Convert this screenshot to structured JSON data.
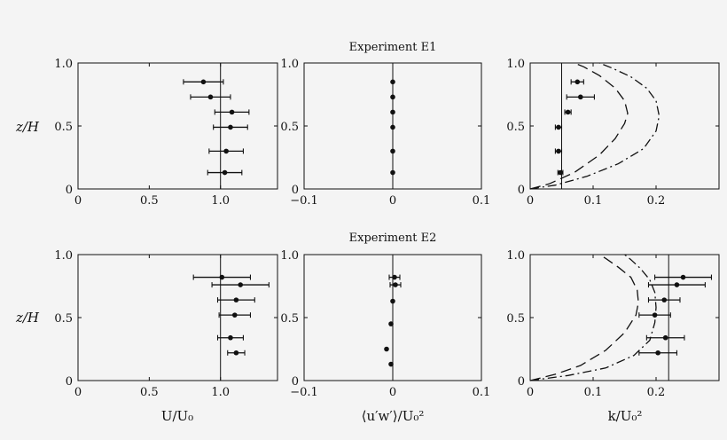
{
  "figure": {
    "row_titles": [
      "Experiment E1",
      "Experiment E2"
    ],
    "ylabel": "z/H",
    "xlabels": [
      "U/U₀",
      "⟨u′w′⟩/U₀²",
      "k/U₀²"
    ]
  },
  "chart_data": [
    {
      "type": "scatter",
      "id": "E1-U",
      "title": "Experiment E1",
      "xlim": [
        0,
        1.4
      ],
      "ylim": [
        0,
        1.0
      ],
      "xticks": [
        "0",
        "0.5",
        "1.0"
      ],
      "xtick_values": [
        0,
        0.5,
        1.0
      ],
      "yticks": [
        "0",
        "0.5",
        "1.0"
      ],
      "ytick_values": [
        0,
        0.5,
        1.0
      ],
      "reference_line_x": 1.0,
      "points": [
        {
          "x": 0.88,
          "y": 0.85,
          "xerr": 0.14
        },
        {
          "x": 0.93,
          "y": 0.73,
          "xerr": 0.14
        },
        {
          "x": 1.08,
          "y": 0.61,
          "xerr": 0.12
        },
        {
          "x": 1.07,
          "y": 0.49,
          "xerr": 0.12
        },
        {
          "x": 1.04,
          "y": 0.3,
          "xerr": 0.12
        },
        {
          "x": 1.03,
          "y": 0.13,
          "xerr": 0.12
        }
      ],
      "curves": []
    },
    {
      "type": "scatter",
      "id": "E1-uw",
      "title": "",
      "xlim": [
        -0.1,
        0.1
      ],
      "ylim": [
        0,
        1.0
      ],
      "xticks": [
        "−0.1",
        "0",
        "0.1"
      ],
      "xtick_values": [
        -0.1,
        0,
        0.1
      ],
      "yticks": [
        "0",
        "0.5",
        "1.0"
      ],
      "ytick_values": [
        0,
        0.5,
        1.0
      ],
      "reference_line_x": 0,
      "points": [
        {
          "x": 0,
          "y": 0.85,
          "xerr": 0
        },
        {
          "x": 0,
          "y": 0.73,
          "xerr": 0
        },
        {
          "x": 0,
          "y": 0.61,
          "xerr": 0
        },
        {
          "x": 0,
          "y": 0.49,
          "xerr": 0
        },
        {
          "x": 0,
          "y": 0.3,
          "xerr": 0
        },
        {
          "x": 0,
          "y": 0.13,
          "xerr": 0
        }
      ],
      "curves": []
    },
    {
      "type": "scatter",
      "id": "E1-k",
      "title": "",
      "xlim": [
        0,
        0.3
      ],
      "ylim": [
        0,
        1.0
      ],
      "xticks": [
        "0",
        "0.1",
        "0.2"
      ],
      "xtick_values": [
        0,
        0.1,
        0.2
      ],
      "yticks": [
        "0",
        "0.5",
        "1.0"
      ],
      "ytick_values": [
        0,
        0.5,
        1.0
      ],
      "reference_line_x": 0.05,
      "points": [
        {
          "x": 0.075,
          "y": 0.85,
          "xerr": 0.01
        },
        {
          "x": 0.08,
          "y": 0.73,
          "xerr": 0.022
        },
        {
          "x": 0.06,
          "y": 0.61,
          "xerr": 0.005
        },
        {
          "x": 0.045,
          "y": 0.49,
          "xerr": 0.005
        },
        {
          "x": 0.045,
          "y": 0.3,
          "xerr": 0.005
        },
        {
          "x": 0.048,
          "y": 0.13,
          "xerr": 0.004
        }
      ],
      "curves": [
        {
          "dash": "12,6",
          "x": [
            0.0,
            0.03,
            0.07,
            0.11,
            0.135,
            0.15,
            0.155,
            0.15,
            0.135,
            0.11,
            0.085,
            0.07
          ],
          "y": [
            0.0,
            0.04,
            0.13,
            0.27,
            0.4,
            0.52,
            0.6,
            0.7,
            0.8,
            0.9,
            0.97,
            1.0
          ]
        },
        {
          "dash": "10,4,2,4",
          "x": [
            0.0,
            0.04,
            0.09,
            0.14,
            0.18,
            0.2,
            0.205,
            0.2,
            0.185,
            0.16,
            0.13,
            0.11
          ],
          "y": [
            0.0,
            0.03,
            0.1,
            0.2,
            0.32,
            0.46,
            0.58,
            0.7,
            0.8,
            0.89,
            0.96,
            1.0
          ]
        }
      ]
    },
    {
      "type": "scatter",
      "id": "E2-U",
      "title": "Experiment E2",
      "xlim": [
        0,
        1.4
      ],
      "ylim": [
        0,
        1.0
      ],
      "xticks": [
        "0",
        "0.5",
        "1.0"
      ],
      "xtick_values": [
        0,
        0.5,
        1.0
      ],
      "yticks": [
        "0",
        "0.5",
        "1.0"
      ],
      "ytick_values": [
        0,
        0.5,
        1.0
      ],
      "reference_line_x": 1.0,
      "points": [
        {
          "x": 1.01,
          "y": 0.82,
          "xerr": 0.2
        },
        {
          "x": 1.14,
          "y": 0.76,
          "xerr": 0.2
        },
        {
          "x": 1.11,
          "y": 0.64,
          "xerr": 0.13
        },
        {
          "x": 1.1,
          "y": 0.52,
          "xerr": 0.11
        },
        {
          "x": 1.07,
          "y": 0.34,
          "xerr": 0.09
        },
        {
          "x": 1.11,
          "y": 0.22,
          "xerr": 0.06
        }
      ],
      "curves": []
    },
    {
      "type": "scatter",
      "id": "E2-uw",
      "title": "",
      "xlim": [
        -0.1,
        0.1
      ],
      "ylim": [
        0,
        1.0
      ],
      "xticks": [
        "−0.1",
        "0",
        "0.1"
      ],
      "xtick_values": [
        -0.1,
        0,
        0.1
      ],
      "yticks": [
        "0",
        "0.5",
        "1.0"
      ],
      "ytick_values": [
        0,
        0.5,
        1.0
      ],
      "reference_line_x": 0,
      "points": [
        {
          "x": 0.002,
          "y": 0.82,
          "xerr": 0.006
        },
        {
          "x": 0.003,
          "y": 0.76,
          "xerr": 0.006
        },
        {
          "x": 0.0,
          "y": 0.63,
          "xerr": 0
        },
        {
          "x": -0.002,
          "y": 0.45,
          "xerr": 0
        },
        {
          "x": -0.007,
          "y": 0.25,
          "xerr": 0
        },
        {
          "x": -0.002,
          "y": 0.13,
          "xerr": 0
        }
      ],
      "curves": []
    },
    {
      "type": "scatter",
      "id": "E2-k",
      "title": "",
      "xlim": [
        0,
        0.3
      ],
      "ylim": [
        0,
        1.0
      ],
      "xticks": [
        "0",
        "0.1",
        "0.2"
      ],
      "xtick_values": [
        0,
        0.1,
        0.2
      ],
      "yticks": [
        "0",
        "0.5",
        "1.0"
      ],
      "ytick_values": [
        0,
        0.5,
        1.0
      ],
      "reference_line_x": 0.22,
      "points": [
        {
          "x": 0.243,
          "y": 0.82,
          "xerr": 0.045
        },
        {
          "x": 0.233,
          "y": 0.76,
          "xerr": 0.045
        },
        {
          "x": 0.213,
          "y": 0.64,
          "xerr": 0.025
        },
        {
          "x": 0.198,
          "y": 0.52,
          "xerr": 0.025
        },
        {
          "x": 0.215,
          "y": 0.34,
          "xerr": 0.03
        },
        {
          "x": 0.203,
          "y": 0.22,
          "xerr": 0.03
        }
      ],
      "curves": [
        {
          "dash": "12,6",
          "x": [
            0.0,
            0.04,
            0.08,
            0.12,
            0.15,
            0.168,
            0.172,
            0.17,
            0.16,
            0.14,
            0.12,
            0.11
          ],
          "y": [
            0.0,
            0.05,
            0.12,
            0.24,
            0.38,
            0.52,
            0.62,
            0.72,
            0.82,
            0.9,
            0.97,
            1.0
          ]
        },
        {
          "dash": "10,4,2,4",
          "x": [
            0.0,
            0.06,
            0.12,
            0.165,
            0.19,
            0.198,
            0.2,
            0.198,
            0.19,
            0.175,
            0.16,
            0.15
          ],
          "y": [
            0.0,
            0.04,
            0.1,
            0.2,
            0.32,
            0.46,
            0.58,
            0.7,
            0.8,
            0.89,
            0.96,
            1.0
          ]
        }
      ]
    }
  ]
}
